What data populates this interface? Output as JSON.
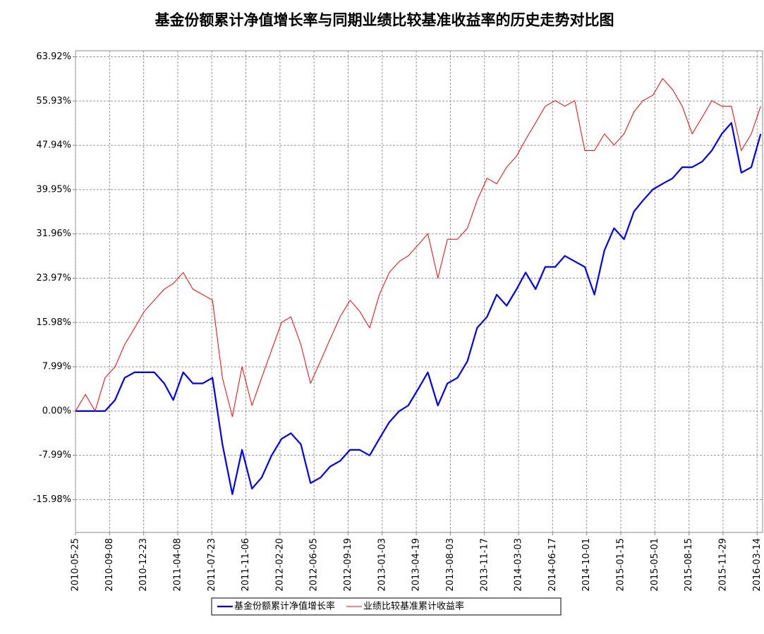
{
  "chart_data": {
    "type": "line",
    "title": "基金份额累计净值增长率与同期业绩比较基准收益率的历史走势对比图",
    "x": [
      "2010-05-25",
      "2010-06-25",
      "2010-07-25",
      "2010-08-25",
      "2010-09-25",
      "2010-10-25",
      "2010-11-25",
      "2010-12-25",
      "2011-01-25",
      "2011-02-25",
      "2011-03-25",
      "2011-04-25",
      "2011-05-25",
      "2011-06-25",
      "2011-07-25",
      "2011-08-25",
      "2011-09-25",
      "2011-10-25",
      "2011-11-25",
      "2011-12-25",
      "2012-01-25",
      "2012-02-25",
      "2012-03-25",
      "2012-04-25",
      "2012-05-25",
      "2012-06-25",
      "2012-07-25",
      "2012-08-25",
      "2012-09-25",
      "2012-10-25",
      "2012-11-25",
      "2012-12-25",
      "2013-01-25",
      "2013-02-25",
      "2013-03-25",
      "2013-04-25",
      "2013-05-25",
      "2013-06-25",
      "2013-07-25",
      "2013-08-25",
      "2013-09-25",
      "2013-10-25",
      "2013-11-25",
      "2013-12-25",
      "2014-01-25",
      "2014-02-25",
      "2014-03-25",
      "2014-04-25",
      "2014-05-25",
      "2014-06-25",
      "2014-07-25",
      "2014-08-25",
      "2014-09-25",
      "2014-10-25",
      "2014-11-25",
      "2014-12-25",
      "2015-01-25",
      "2015-02-25",
      "2015-03-25",
      "2015-04-25",
      "2015-05-25",
      "2015-06-25",
      "2015-07-25",
      "2015-08-25",
      "2015-09-25",
      "2015-10-25",
      "2015-11-25",
      "2015-12-25",
      "2016-01-25",
      "2016-02-25",
      "2016-03-25"
    ],
    "series": [
      {
        "name": "基金份额累计净值增长率",
        "color": "#0000ff",
        "width": 2.2,
        "values": [
          0,
          0,
          0,
          0,
          2,
          6,
          7,
          7,
          7,
          5,
          2,
          7,
          5,
          5,
          6,
          -6,
          -15,
          -7,
          -14,
          -12,
          -8,
          -5,
          -4,
          -6,
          -13,
          -12,
          -10,
          -9,
          -7,
          -7,
          -8,
          -5,
          -2,
          0,
          1,
          4,
          7,
          1,
          5,
          6,
          9,
          15,
          17,
          21,
          19,
          22,
          25,
          22,
          26,
          26,
          28,
          27,
          26,
          21,
          29,
          33,
          31,
          36,
          38,
          40,
          41,
          42,
          44,
          44,
          45,
          47,
          50,
          52,
          43,
          44,
          50
        ]
      },
      {
        "name": "业绩比较基准累计收益率",
        "color": "#ff0000",
        "width": 1,
        "values": [
          0,
          3,
          0,
          6,
          8,
          12,
          15,
          18,
          20,
          22,
          23,
          25,
          22,
          21,
          20,
          6,
          -1,
          8,
          1,
          6,
          11,
          16,
          17,
          12,
          5,
          9,
          13,
          17,
          20,
          18,
          15,
          21,
          25,
          27,
          28,
          30,
          32,
          24,
          31,
          31,
          33,
          38,
          42,
          41,
          44,
          46,
          49,
          52,
          55,
          56,
          55,
          56,
          47,
          47,
          50,
          48,
          50,
          54,
          56,
          57,
          60,
          58,
          55,
          50,
          53,
          56,
          55,
          55,
          47,
          50,
          55
        ]
      }
    ],
    "xlim": [
      "2010-05-25",
      "2016-03-31"
    ],
    "xticks": [
      "2010-05-25",
      "2010-09-08",
      "2010-12-23",
      "2011-04-08",
      "2011-07-23",
      "2011-11-06",
      "2012-02-20",
      "2012-06-05",
      "2012-09-19",
      "2013-01-03",
      "2013-04-19",
      "2013-08-03",
      "2013-11-17",
      "2014-03-03",
      "2014-06-17",
      "2014-10-01",
      "2015-01-15",
      "2015-05-01",
      "2015-08-15",
      "2015-11-29",
      "2016-03-14"
    ],
    "ylim": [
      -21.9,
      65
    ],
    "yticks": [
      {
        "value": -15.98,
        "label": "-15.98%"
      },
      {
        "value": -7.99,
        "label": "-7.99%"
      },
      {
        "value": 0,
        "label": "0.00%"
      },
      {
        "value": 7.99,
        "label": "7.99%"
      },
      {
        "value": 15.98,
        "label": "15.98%"
      },
      {
        "value": 23.97,
        "label": "23.97%"
      },
      {
        "value": 31.96,
        "label": "31.96%"
      },
      {
        "value": 39.95,
        "label": "39.95%"
      },
      {
        "value": 47.94,
        "label": "47.94%"
      },
      {
        "value": 55.93,
        "label": "55.93%"
      },
      {
        "value": 63.92,
        "label": "63.92%"
      }
    ],
    "grid": true,
    "legend": "bottom"
  }
}
